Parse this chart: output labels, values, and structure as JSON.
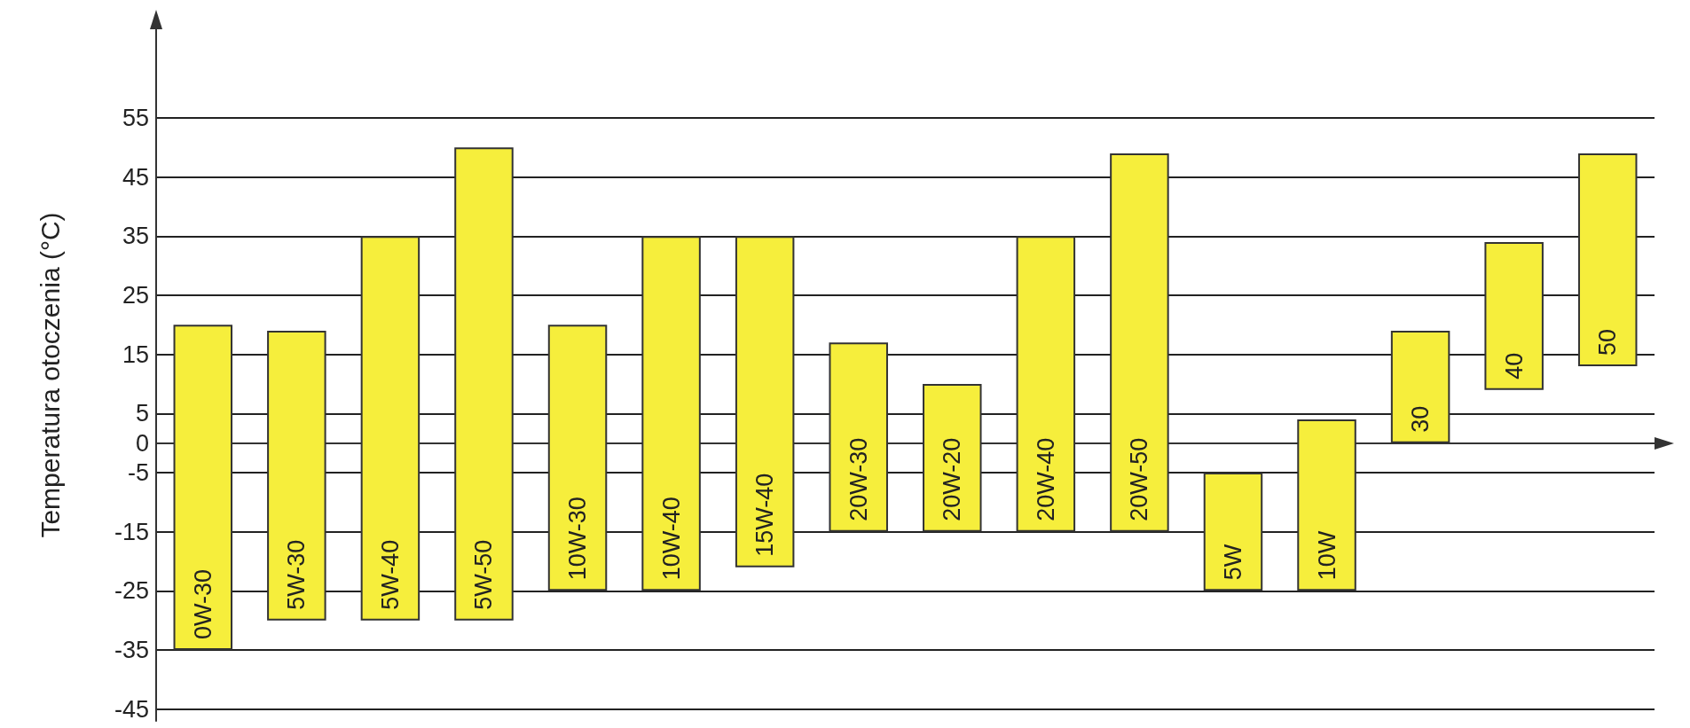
{
  "chart_data": {
    "type": "bar",
    "ylabel": "Temperatura otoczenia (°C)",
    "categories": [
      "0W-30",
      "5W-30",
      "5W-40",
      "5W-50",
      "10W-30",
      "10W-40",
      "15W-40",
      "20W-30",
      "20W-20",
      "20W-40",
      "20W-50",
      "5W",
      "10W",
      "30",
      "40",
      "50"
    ],
    "base": [
      -35,
      -30,
      -30,
      -30,
      -25,
      -25,
      -21,
      -15,
      -15,
      -15,
      -15,
      -25,
      -25,
      0,
      9,
      13
    ],
    "values": [
      55,
      49,
      65,
      80,
      45,
      60,
      56,
      32,
      25,
      50,
      64,
      20,
      29,
      19,
      25,
      36
    ],
    "color": "#f6ee3c",
    "ylim": [
      -47,
      70
    ],
    "yticks": [
      -45,
      -35,
      -25,
      -15,
      -5,
      0,
      5,
      15,
      25,
      35,
      45,
      55
    ],
    "grid": "y",
    "tick_labels": "y"
  }
}
